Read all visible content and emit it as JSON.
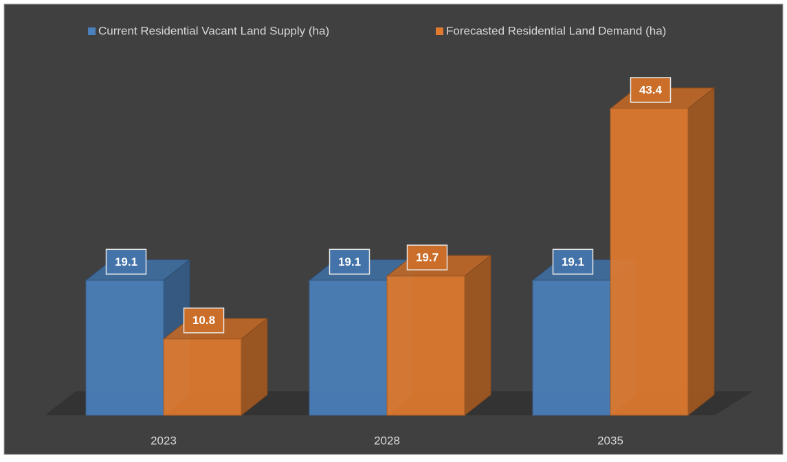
{
  "chart_data": {
    "type": "bar3d",
    "categories": [
      "2023",
      "2028",
      "2035"
    ],
    "series": [
      {
        "name": "Current Residential Vacant Land Supply (ha)",
        "color": "#4a80bb",
        "values": [
          19.1,
          19.1,
          19.1
        ]
      },
      {
        "name": "Forecasted Residential Land Demand (ha)",
        "color": "#e07a2e",
        "values": [
          10.8,
          19.7,
          43.4
        ]
      }
    ]
  }
}
